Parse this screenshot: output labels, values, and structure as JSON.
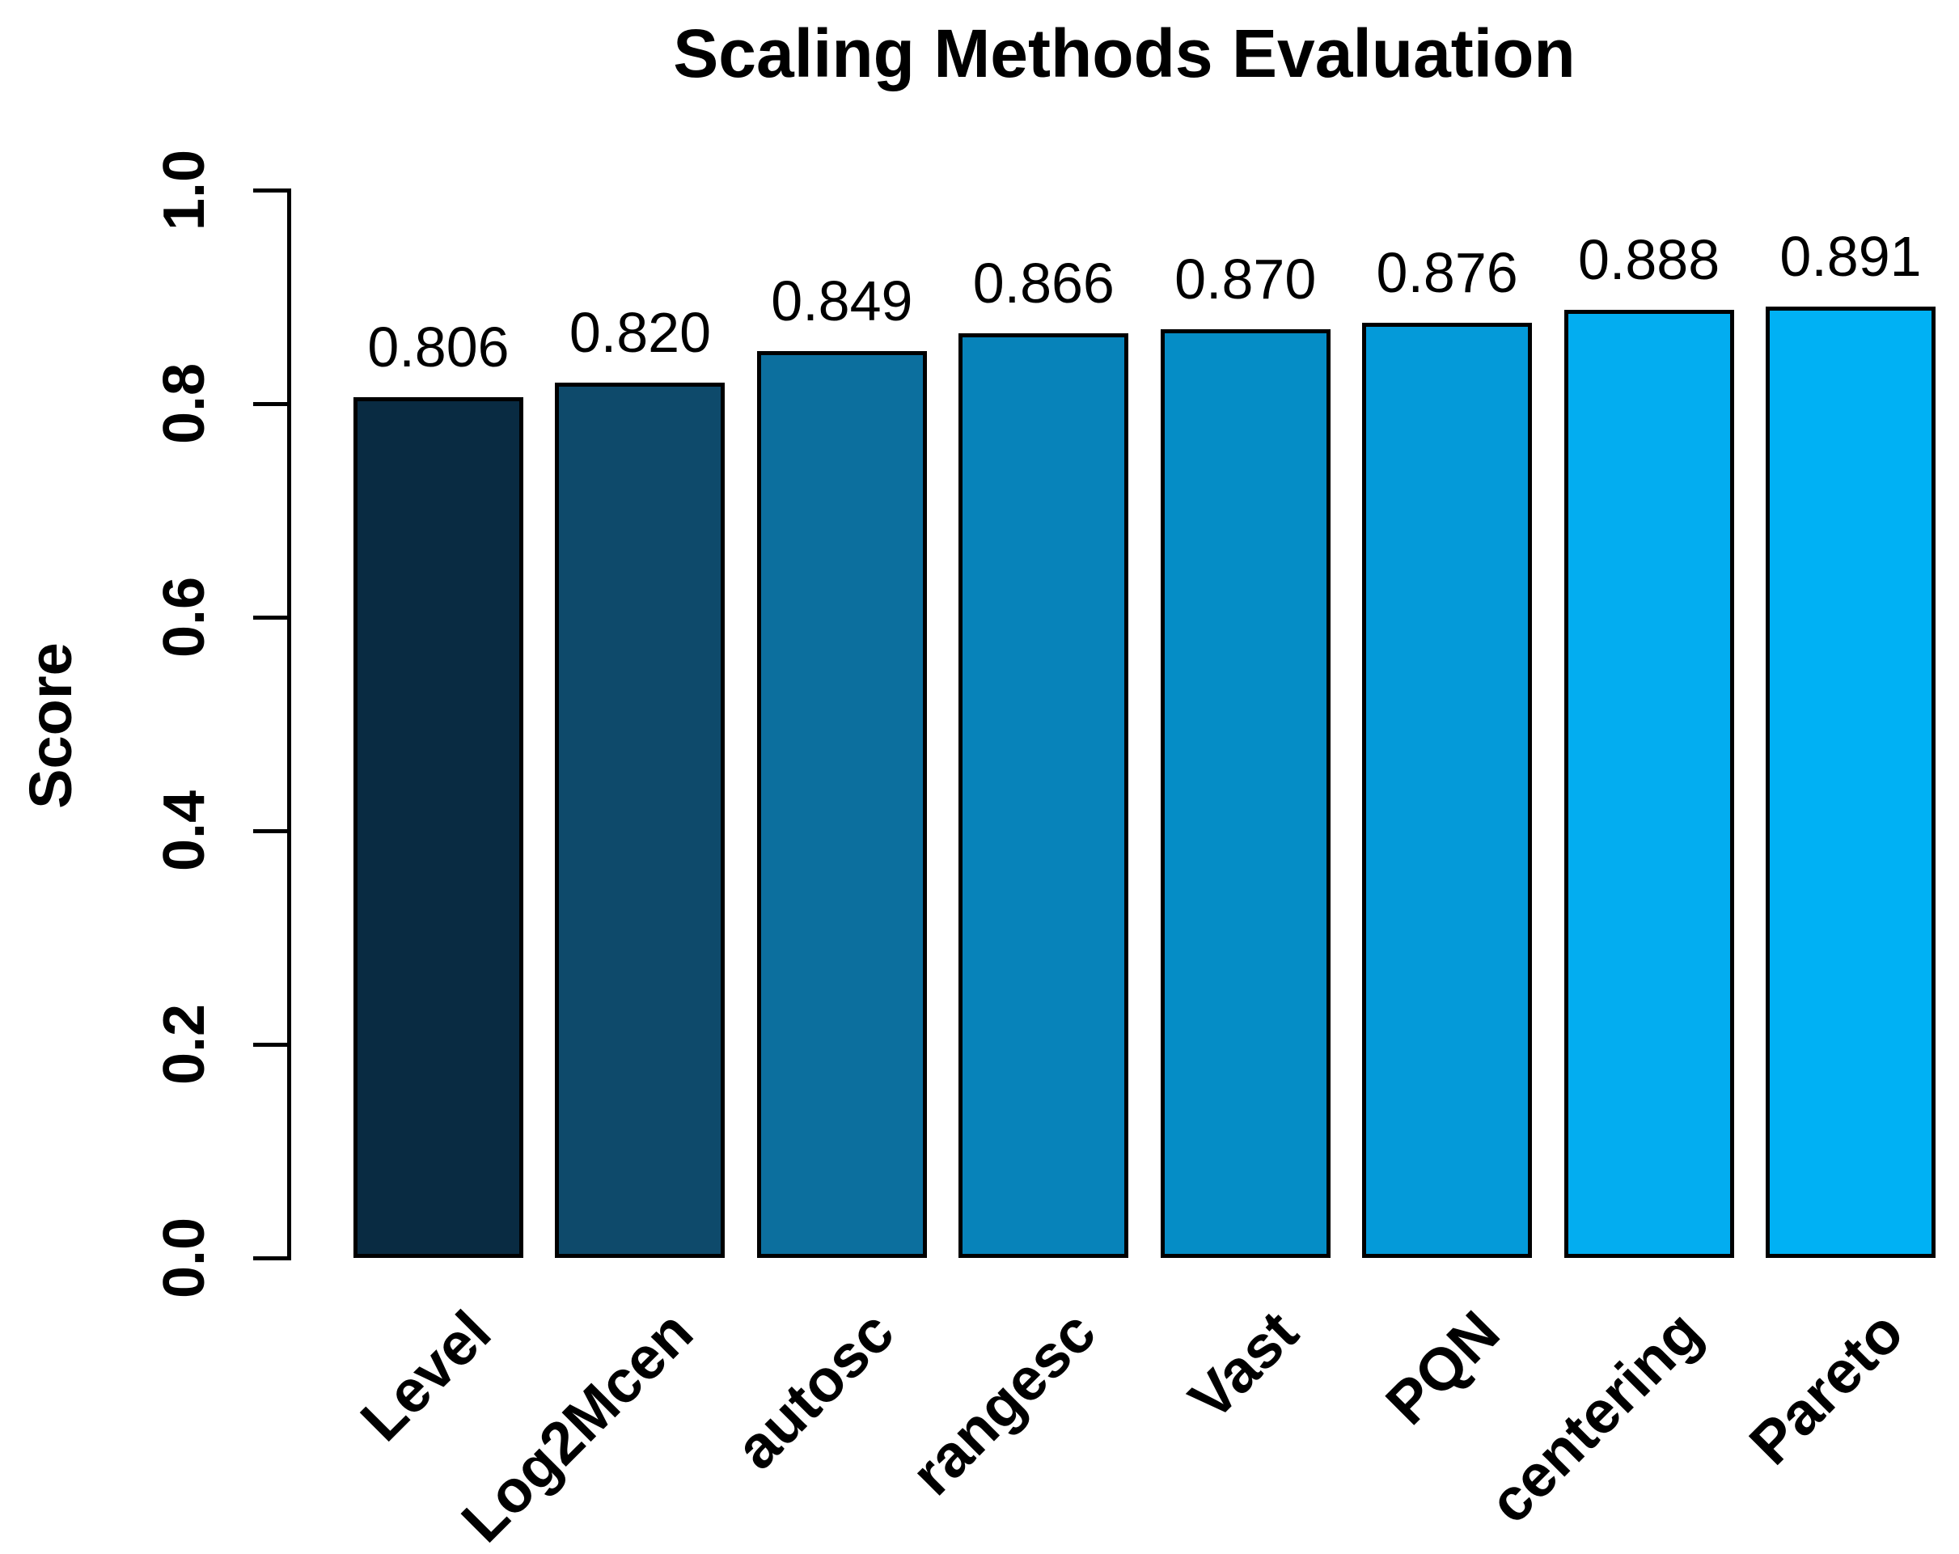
{
  "chart_data": {
    "type": "bar",
    "title": "Scaling Methods Evaluation",
    "xlabel": "",
    "ylabel": "Score",
    "categories": [
      "Level",
      "Log2Mcen",
      "autosc",
      "rangesc",
      "Vast",
      "PQN",
      "centering",
      "Pareto"
    ],
    "values": [
      0.806,
      0.82,
      0.849,
      0.866,
      0.87,
      0.876,
      0.888,
      0.891
    ],
    "value_labels": [
      "0.806",
      "0.820",
      "0.849",
      "0.866",
      "0.870",
      "0.876",
      "0.888",
      "0.891"
    ],
    "bar_colors": [
      "#092B42",
      "#0E4A6B",
      "#0C6F9E",
      "#0783BA",
      "#058DC6",
      "#049AD9",
      "#03ADF0",
      "#00B1F4"
    ],
    "bar_border_color": "#000000",
    "axis_color": "#000000",
    "ylim": [
      0.0,
      1.0
    ],
    "yticks": [
      "0.0",
      "0.2",
      "0.4",
      "0.6",
      "0.8",
      "1.0"
    ],
    "grid": false,
    "legend": null,
    "x_label_rotation_deg": 45,
    "y_tick_rotation_deg": 90
  }
}
